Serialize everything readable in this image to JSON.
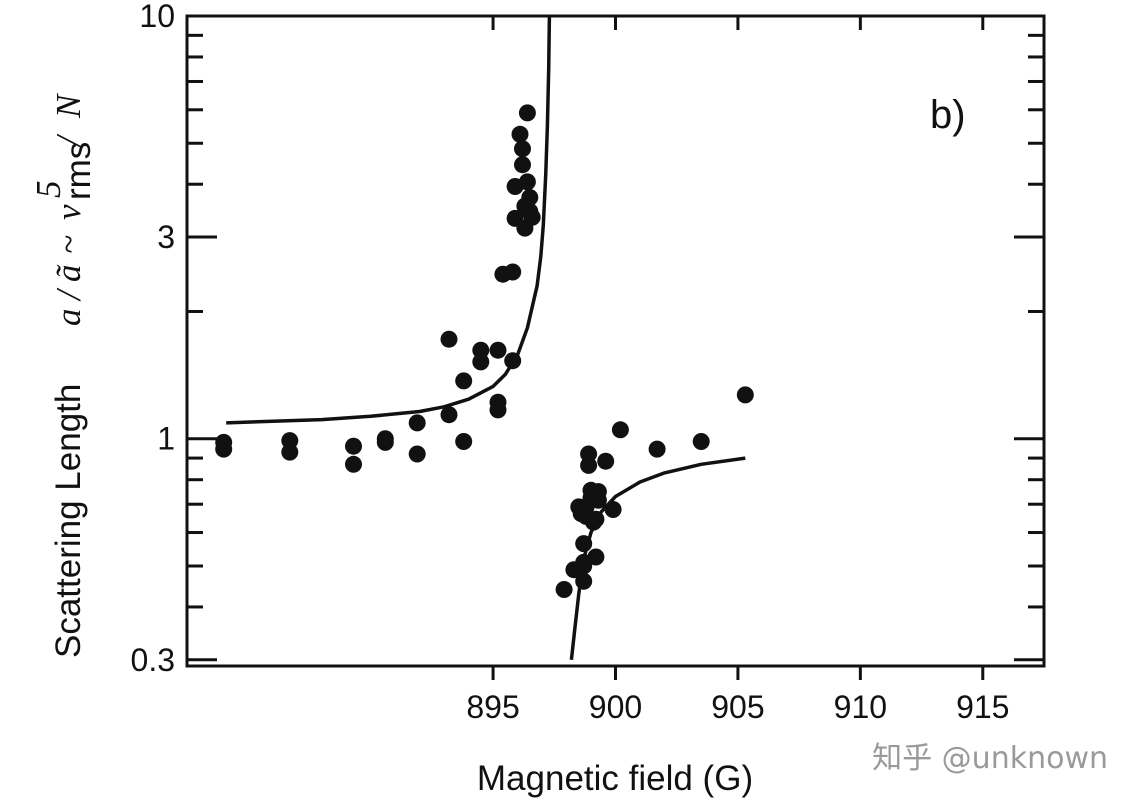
{
  "chart_data": {
    "type": "scatter",
    "panel_label": "b)",
    "xlabel": "Magnetic field (G)",
    "ylabel": {
      "text": "Scattering Length",
      "formula": {
        "a": "a",
        "slash1": "/",
        "atilde": "ã",
        "sim": "~",
        "v": "v",
        "sup": "5",
        "sub": "rms",
        "slash2": "/",
        "n": "N"
      }
    },
    "xlim": [
      882.5,
      917.5
    ],
    "ylim": [
      0.29,
      10
    ],
    "yscale": "log",
    "xticks": [
      895,
      900,
      905,
      910,
      915
    ],
    "xtick_labels": [
      "895",
      "900",
      "905",
      "910",
      "915"
    ],
    "yticks": [
      0.3,
      1,
      3,
      10
    ],
    "ytick_labels": [
      "0.3",
      "1",
      "3",
      "10"
    ],
    "series": [
      {
        "kind": "points",
        "points": [
          [
            884.0,
            0.98
          ],
          [
            884.0,
            0.945
          ],
          [
            886.7,
            0.99
          ],
          [
            886.7,
            0.93
          ],
          [
            889.3,
            0.96
          ],
          [
            889.3,
            0.87
          ],
          [
            890.6,
            1.0
          ],
          [
            890.6,
            0.98
          ],
          [
            891.9,
            1.09
          ],
          [
            891.9,
            0.92
          ],
          [
            893.2,
            1.14
          ],
          [
            893.2,
            1.72
          ],
          [
            893.8,
            1.37
          ],
          [
            893.8,
            0.985
          ],
          [
            894.5,
            1.62
          ],
          [
            894.5,
            1.52
          ],
          [
            895.2,
            1.62
          ],
          [
            895.2,
            1.22
          ],
          [
            895.2,
            1.17
          ],
          [
            895.4,
            2.45
          ],
          [
            895.8,
            2.48
          ],
          [
            895.8,
            1.53
          ],
          [
            895.9,
            3.95
          ],
          [
            895.9,
            3.32
          ],
          [
            896.1,
            5.25
          ],
          [
            896.2,
            4.85
          ],
          [
            896.2,
            4.45
          ],
          [
            896.3,
            3.55
          ],
          [
            896.3,
            3.15
          ],
          [
            896.4,
            5.9
          ],
          [
            896.4,
            4.05
          ],
          [
            896.5,
            3.72
          ],
          [
            896.5,
            3.45
          ],
          [
            896.6,
            3.34
          ],
          [
            897.9,
            0.44
          ],
          [
            898.3,
            0.49
          ],
          [
            898.5,
            0.69
          ],
          [
            898.6,
            0.665
          ],
          [
            898.7,
            0.51
          ],
          [
            898.7,
            0.5
          ],
          [
            898.7,
            0.46
          ],
          [
            898.7,
            0.565
          ],
          [
            898.8,
            0.655
          ],
          [
            898.8,
            0.69
          ],
          [
            898.9,
            0.92
          ],
          [
            898.9,
            0.865
          ],
          [
            899.0,
            0.755
          ],
          [
            899.0,
            0.725
          ],
          [
            899.1,
            0.635
          ],
          [
            899.2,
            0.525
          ],
          [
            899.2,
            0.645
          ],
          [
            899.3,
            0.75
          ],
          [
            899.3,
            0.715
          ],
          [
            899.6,
            0.885
          ],
          [
            899.9,
            0.68
          ],
          [
            900.2,
            1.05
          ],
          [
            901.7,
            0.945
          ],
          [
            903.5,
            0.985
          ],
          [
            905.3,
            1.27
          ]
        ]
      },
      {
        "kind": "fit",
        "branches": [
          [
            [
              884.1,
              1.09
            ],
            [
              886.0,
              1.1
            ],
            [
              888.0,
              1.11
            ],
            [
              890.0,
              1.13
            ],
            [
              892.0,
              1.16
            ],
            [
              893.0,
              1.19
            ],
            [
              894.0,
              1.24
            ],
            [
              895.0,
              1.33
            ],
            [
              895.5,
              1.42
            ],
            [
              896.0,
              1.58
            ],
            [
              896.4,
              1.83
            ],
            [
              896.8,
              2.3
            ],
            [
              896.95,
              2.7
            ],
            [
              897.05,
              3.2
            ],
            [
              897.15,
              4.2
            ],
            [
              897.22,
              5.5
            ],
            [
              897.27,
              7.5
            ],
            [
              897.3,
              10.0
            ]
          ],
          [
            [
              898.2,
              0.3
            ],
            [
              898.35,
              0.36
            ],
            [
              898.5,
              0.43
            ],
            [
              898.7,
              0.52
            ],
            [
              899.0,
              0.6
            ],
            [
              899.4,
              0.67
            ],
            [
              900.0,
              0.73
            ],
            [
              901.0,
              0.79
            ],
            [
              902.0,
              0.83
            ],
            [
              903.5,
              0.87
            ],
            [
              905.3,
              0.9
            ]
          ]
        ]
      }
    ]
  },
  "watermark": "知乎 @unknown"
}
